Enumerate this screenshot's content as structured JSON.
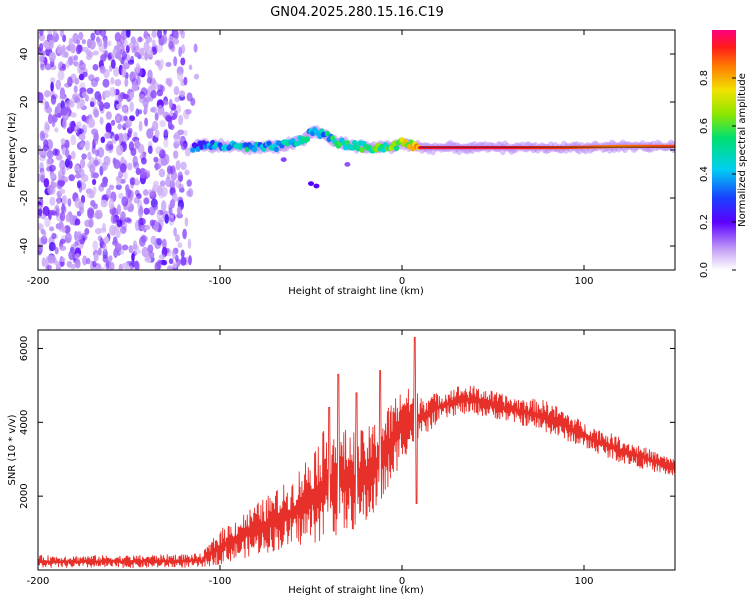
{
  "title": "GN04.2025.280.15.16.C19",
  "chart_data": [
    {
      "type": "heatmap",
      "xlabel": "Height of straight line (km)",
      "ylabel": "Frequency (Hz)",
      "xlim": [
        -200,
        150
      ],
      "ylim": [
        -50,
        50
      ],
      "xticks": [
        -200,
        -100,
        0,
        100
      ],
      "yticks": [
        -40,
        -20,
        0,
        20,
        40
      ],
      "colorbar": {
        "label": "Normalized spectral amplitude",
        "range": [
          0.0,
          1.0
        ],
        "ticks": [
          "0.0",
          "0.2",
          "0.4",
          "0.6",
          "0.8"
        ]
      },
      "noise_region_km": [
        -200,
        -112
      ],
      "ridge": [
        {
          "x": -115,
          "f": 1.5,
          "amp": 0.45
        },
        {
          "x": -105,
          "f": 2,
          "amp": 0.5
        },
        {
          "x": -95,
          "f": 1.5,
          "amp": 0.5
        },
        {
          "x": -85,
          "f": 1,
          "amp": 0.55
        },
        {
          "x": -75,
          "f": 1,
          "amp": 0.5
        },
        {
          "x": -65,
          "f": 2,
          "amp": 0.55
        },
        {
          "x": -55,
          "f": 4,
          "amp": 0.6
        },
        {
          "x": -48,
          "f": 8,
          "amp": 0.5
        },
        {
          "x": -42,
          "f": 6,
          "amp": 0.55
        },
        {
          "x": -35,
          "f": 3,
          "amp": 0.6
        },
        {
          "x": -25,
          "f": 1.5,
          "amp": 0.6
        },
        {
          "x": -15,
          "f": 1,
          "amp": 0.65
        },
        {
          "x": -5,
          "f": 1.5,
          "amp": 0.7
        },
        {
          "x": 0,
          "f": 3,
          "amp": 0.75
        },
        {
          "x": 10,
          "f": 1,
          "amp": 0.95
        },
        {
          "x": 50,
          "f": 1,
          "amp": 0.95
        },
        {
          "x": 90,
          "f": 1,
          "amp": 0.9
        },
        {
          "x": 120,
          "f": 1.5,
          "amp": 0.85
        },
        {
          "x": 150,
          "f": 1.5,
          "amp": 0.9
        }
      ]
    },
    {
      "type": "line",
      "xlabel": "Height of straight line (km)",
      "ylabel": "SNR (10 * v/v)",
      "xlim": [
        -200,
        150
      ],
      "ylim": [
        0,
        6500
      ],
      "xticks": [
        -200,
        -100,
        0,
        100
      ],
      "yticks": [
        2000,
        4000,
        6000
      ],
      "series": [
        {
          "name": "SNR",
          "color": "#e8302a",
          "envelope": {
            "x": [
              -200,
              -150,
              -110,
              -100,
              -80,
              -60,
              -40,
              -30,
              -20,
              -10,
              0,
              10,
              20,
              30,
              40,
              60,
              80,
              100,
              120,
              150
            ],
            "low": [
              50,
              50,
              60,
              150,
              400,
              600,
              800,
              1000,
              1200,
              1800,
              3000,
              3500,
              4000,
              4200,
              4200,
              4000,
              3700,
              3300,
              2900,
              2500
            ],
            "high": [
              400,
              400,
              450,
              1100,
              1800,
              2500,
              4000,
              3800,
              3800,
              4300,
              5000,
              4800,
              4800,
              5000,
              5000,
              4700,
              4600,
              4000,
              3600,
              3000
            ]
          },
          "spikes": [
            {
              "x": -40,
              "y": 4400
            },
            {
              "x": -35,
              "y": 5300
            },
            {
              "x": -25,
              "y": 4800
            },
            {
              "x": -12,
              "y": 5400
            },
            {
              "x": 7,
              "y": 6300
            },
            {
              "x": 8,
              "y": 1800
            }
          ]
        }
      ]
    }
  ]
}
